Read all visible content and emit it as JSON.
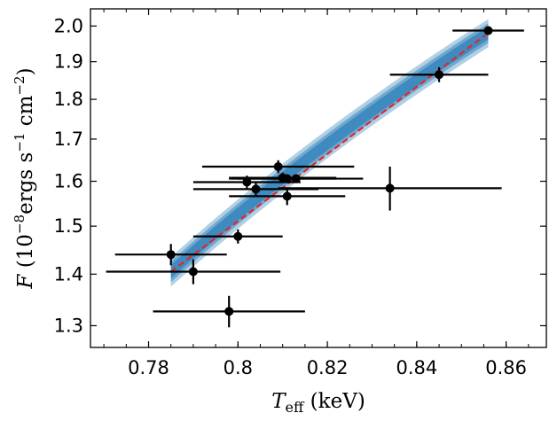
{
  "chart_data": {
    "type": "scatter",
    "title": "",
    "xlabel": {
      "main": "T",
      "sub": "eff",
      "rest": " (keV)"
    },
    "ylabel": {
      "pre": "F",
      "mid": " (10",
      "exp1": "−8",
      "mid2": "ergs s",
      "exp2": "−1",
      "mid3": " cm",
      "exp3": "−2",
      "post": ")"
    },
    "xlim": [
      0.767,
      0.869
    ],
    "ylim": [
      1.26,
      2.05
    ],
    "y_scale": "log",
    "xticks": [
      0.78,
      0.8,
      0.82,
      0.84,
      0.86
    ],
    "xtick_labels": [
      "0.78",
      "0.8",
      "0.82",
      "0.84",
      "0.86"
    ],
    "yticks": [
      1.3,
      1.4,
      1.5,
      1.6,
      1.7,
      1.8,
      1.9,
      2.0
    ],
    "ytick_labels": [
      "1.3",
      "1.4",
      "1.5",
      "1.6",
      "1.7",
      "1.8",
      "1.9",
      "2.0"
    ],
    "points": [
      {
        "x": 0.856,
        "y": 1.987,
        "xerr": 0.008,
        "yerr": 0.012
      },
      {
        "x": 0.845,
        "y": 1.865,
        "xerr": 0.011,
        "yerr": 0.02
      },
      {
        "x": 0.834,
        "y": 1.584,
        "xerr": 0.025,
        "yerr": 0.05
      },
      {
        "x": 0.809,
        "y": 1.634,
        "xerr": 0.017,
        "yerr": 0.015
      },
      {
        "x": 0.81,
        "y": 1.608,
        "xerr": 0.012,
        "yerr": 0.012
      },
      {
        "x": 0.811,
        "y": 1.606,
        "xerr": 0.011,
        "yerr": 0.01
      },
      {
        "x": 0.813,
        "y": 1.606,
        "xerr": 0.015,
        "yerr": 0.01
      },
      {
        "x": 0.802,
        "y": 1.598,
        "xerr": 0.012,
        "yerr": 0.015
      },
      {
        "x": 0.804,
        "y": 1.582,
        "xerr": 0.014,
        "yerr": 0.015
      },
      {
        "x": 0.811,
        "y": 1.566,
        "xerr": 0.013,
        "yerr": 0.02
      },
      {
        "x": 0.8,
        "y": 1.478,
        "xerr": 0.01,
        "yerr": 0.015
      },
      {
        "x": 0.785,
        "y": 1.44,
        "xerr": 0.0125,
        "yerr": 0.022
      },
      {
        "x": 0.79,
        "y": 1.405,
        "xerr": 0.0195,
        "yerr": 0.025
      },
      {
        "x": 0.798,
        "y": 1.327,
        "xerr": 0.017,
        "yerr": 0.03
      }
    ],
    "fit": {
      "x": [
        0.785,
        0.856
      ],
      "y": [
        1.405,
        1.98
      ],
      "color": "#e8242a",
      "style": "dashed"
    },
    "band": {
      "color": "#1f77b4",
      "half_width_low": 0.03,
      "half_width_high": 0.04
    },
    "marker_color": "#000000"
  }
}
